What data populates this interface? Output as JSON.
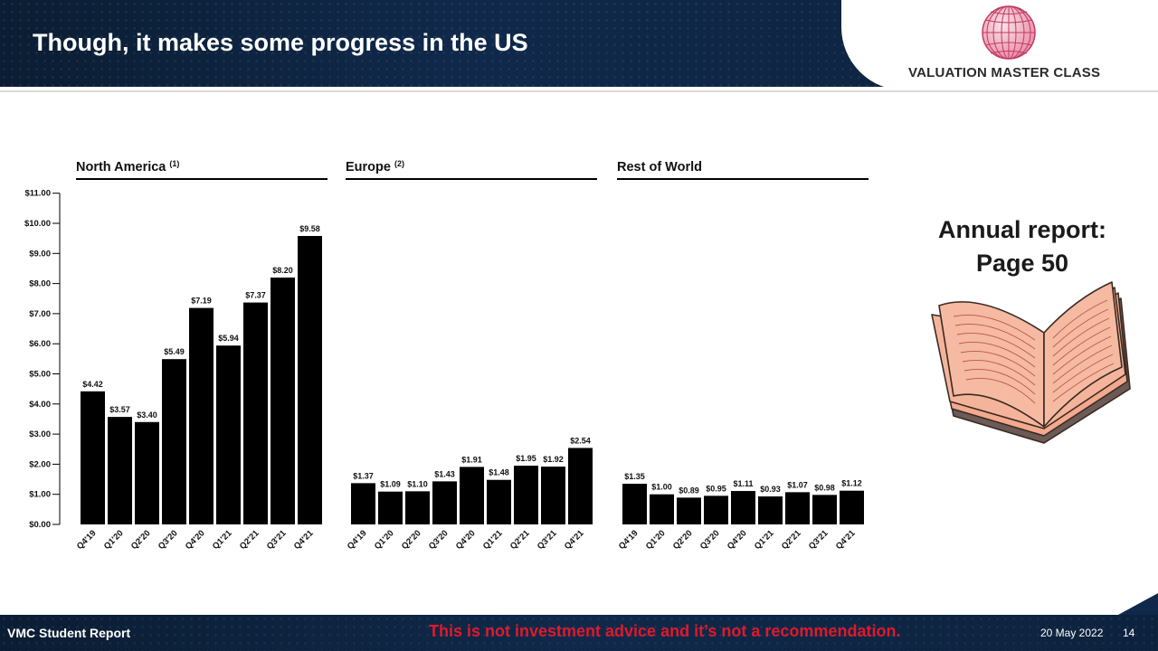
{
  "slide": {
    "title": "Though, it makes some progress in the US",
    "brand": "VALUATION MASTER CLASS",
    "side_note": [
      "Annual report:",
      "Page 50"
    ]
  },
  "footer": {
    "left": "VMC Student Report",
    "disclaimer": "This is not investment advice and it’s not a recommendation.",
    "date": "20 May 2022",
    "page": "14"
  },
  "colors": {
    "bars": "#000000",
    "header": "#10294a",
    "disclaimer": "#e0192b",
    "book": "#f2a98e"
  },
  "icons": {
    "logo": "globe-icon",
    "book": "open-book-icon"
  },
  "chart_data": [
    {
      "type": "bar",
      "title": "North America",
      "title_note": "(1)",
      "categories": [
        "Q4'19",
        "Q1'20",
        "Q2'20",
        "Q3'20",
        "Q4'20",
        "Q1'21",
        "Q2'21",
        "Q3'21",
        "Q4'21"
      ],
      "values": [
        4.42,
        3.57,
        3.4,
        5.49,
        7.19,
        5.94,
        7.37,
        8.2,
        9.58
      ],
      "labels": [
        "$4.42",
        "$3.57",
        "$3.40",
        "$5.49",
        "$7.19",
        "$5.94",
        "$7.37",
        "$8.20",
        "$9.58"
      ],
      "ylim": [
        0,
        11
      ],
      "yticks": [
        "$0.00",
        "$1.00",
        "$2.00",
        "$3.00",
        "$4.00",
        "$5.00",
        "$6.00",
        "$7.00",
        "$8.00",
        "$9.00",
        "$10.00",
        "$11.00"
      ],
      "xlabel": "",
      "ylabel": "",
      "grid": false
    },
    {
      "type": "bar",
      "title": "Europe",
      "title_note": "(2)",
      "categories": [
        "Q4'19",
        "Q1'20",
        "Q2'20",
        "Q3'20",
        "Q4'20",
        "Q1'21",
        "Q2'21",
        "Q3'21",
        "Q4'21"
      ],
      "values": [
        1.37,
        1.09,
        1.1,
        1.43,
        1.91,
        1.48,
        1.95,
        1.92,
        2.54
      ],
      "labels": [
        "$1.37",
        "$1.09",
        "$1.10",
        "$1.43",
        "$1.91",
        "$1.48",
        "$1.95",
        "$1.92",
        "$2.54"
      ],
      "ylim": [
        0,
        11
      ],
      "xlabel": "",
      "ylabel": "",
      "grid": false
    },
    {
      "type": "bar",
      "title": "Rest of World",
      "title_note": "",
      "categories": [
        "Q4'19",
        "Q1'20",
        "Q2'20",
        "Q3'20",
        "Q4'20",
        "Q1'21",
        "Q2'21",
        "Q3'21",
        "Q4'21"
      ],
      "values": [
        1.35,
        1.0,
        0.89,
        0.95,
        1.11,
        0.93,
        1.07,
        0.98,
        1.12
      ],
      "labels": [
        "$1.35",
        "$1.00",
        "$0.89",
        "$0.95",
        "$1.11",
        "$0.93",
        "$1.07",
        "$0.98",
        "$1.12"
      ],
      "ylim": [
        0,
        11
      ],
      "xlabel": "",
      "ylabel": "",
      "grid": false
    }
  ]
}
